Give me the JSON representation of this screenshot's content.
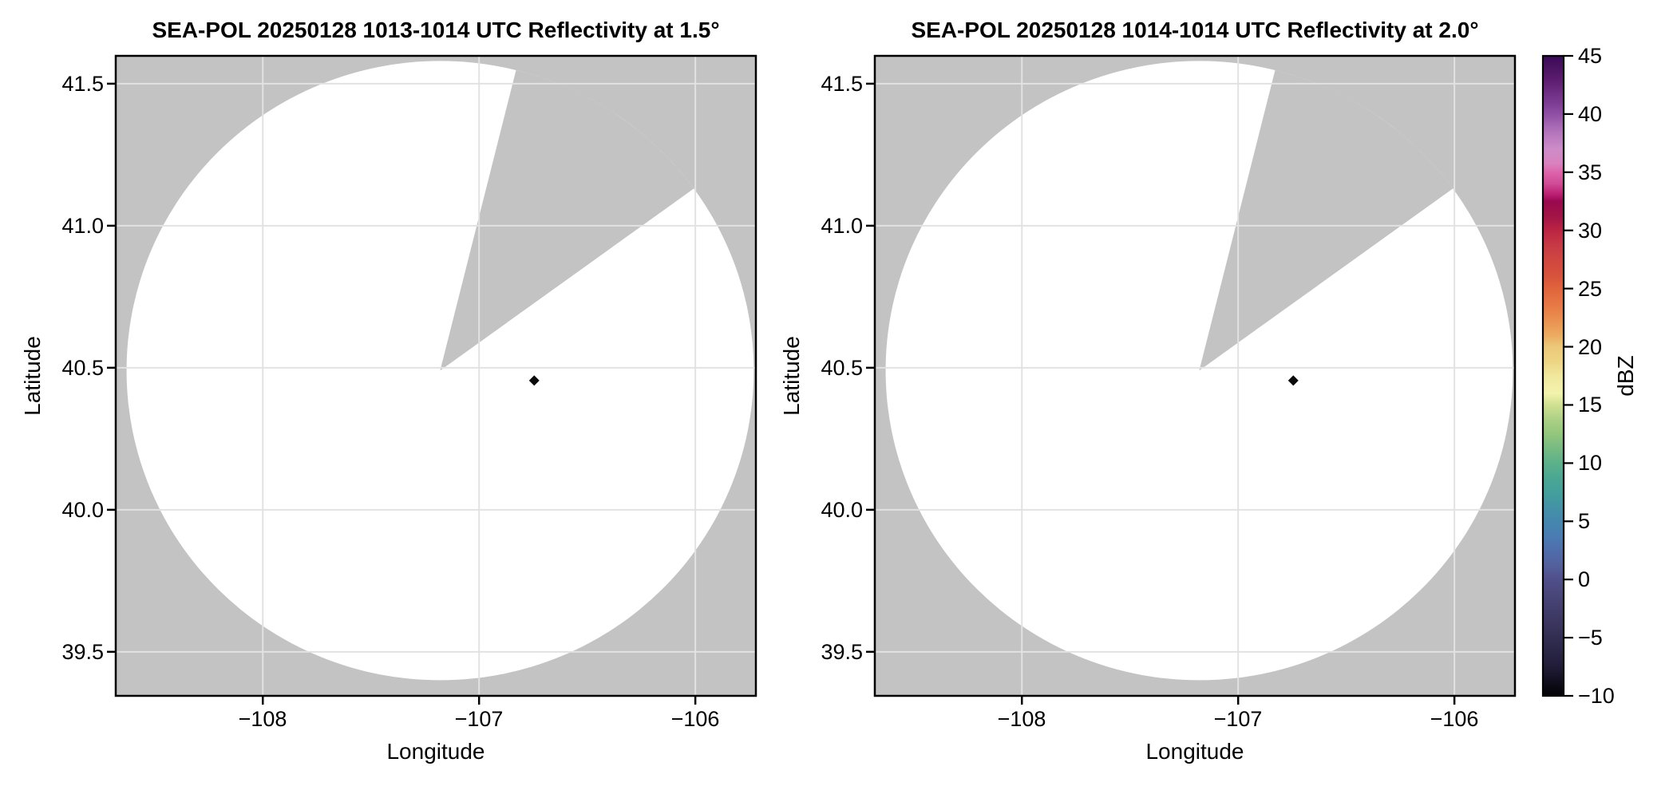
{
  "figure": {
    "background": "#ffffff",
    "panel_bg_nodata": "#c3c3c3",
    "scan_area_color": "#ffffff",
    "grid_color": "#e2e2e2",
    "frame_color": "#000000"
  },
  "chart_data": [
    {
      "type": "radar_ppi",
      "title": "SEA-POL 20250128 1013-1014 UTC Reflectivity at 1.5°",
      "xlabel": "Longitude",
      "ylabel": "Latitude",
      "xlim": [
        -108.68,
        -105.72
      ],
      "ylim": [
        39.345,
        41.598
      ],
      "x_ticks": [
        -108,
        -107,
        -106
      ],
      "x_tick_labels": [
        "−108",
        "−107",
        "−106"
      ],
      "y_ticks": [
        41.5,
        41.0,
        40.5,
        40.0,
        39.5
      ],
      "y_tick_labels": [
        "41.5",
        "41.0",
        "40.5",
        "40.0",
        "39.5"
      ],
      "grid": true,
      "radar_site": {
        "lon": -107.18,
        "lat": 40.49
      },
      "range_radius_deg": {
        "lon": 1.45,
        "lat": 1.09
      },
      "no_data_sector_azimuth_deg": [
        14,
        54
      ],
      "echoes": [
        {
          "lon": -106.745,
          "lat": 40.455,
          "dbz_approx": -10,
          "color": "#0a0a0a"
        }
      ]
    },
    {
      "type": "radar_ppi",
      "title": "SEA-POL 20250128 1014-1014 UTC Reflectivity at 2.0°",
      "xlabel": "Longitude",
      "ylabel": "Latitude",
      "xlim": [
        -108.68,
        -105.72
      ],
      "ylim": [
        39.345,
        41.598
      ],
      "x_ticks": [
        -108,
        -107,
        -106
      ],
      "x_tick_labels": [
        "−108",
        "−107",
        "−106"
      ],
      "y_ticks": [
        41.5,
        41.0,
        40.5,
        40.0,
        39.5
      ],
      "y_tick_labels": [
        "41.5",
        "41.0",
        "40.5",
        "40.0",
        "39.5"
      ],
      "grid": true,
      "radar_site": {
        "lon": -107.18,
        "lat": 40.49
      },
      "range_radius_deg": {
        "lon": 1.45,
        "lat": 1.09
      },
      "no_data_sector_azimuth_deg": [
        14,
        54
      ],
      "echoes": [
        {
          "lon": -106.745,
          "lat": 40.455,
          "dbz_approx": -10,
          "color": "#0a0a0a"
        }
      ]
    },
    {
      "type": "colorbar",
      "label": "dBZ",
      "vmin": -10,
      "vmax": 45,
      "ticks": [
        45,
        40,
        35,
        30,
        25,
        20,
        15,
        10,
        5,
        0,
        -5,
        -10
      ],
      "tick_labels": [
        "45",
        "40",
        "35",
        "30",
        "25",
        "20",
        "15",
        "10",
        "5",
        "0",
        "−5",
        "−10"
      ],
      "gradient": [
        {
          "v": 45,
          "c": "#3a0a56"
        },
        {
          "v": 43,
          "c": "#5b1c6e"
        },
        {
          "v": 41,
          "c": "#7c3b92"
        },
        {
          "v": 40,
          "c": "#8e4fa4"
        },
        {
          "v": 38.5,
          "c": "#b273bb"
        },
        {
          "v": 37,
          "c": "#cd8cc8"
        },
        {
          "v": 35.8,
          "c": "#d883c0"
        },
        {
          "v": 35,
          "c": "#de64aa"
        },
        {
          "v": 34,
          "c": "#d04a96"
        },
        {
          "v": 33,
          "c": "#b81a6e"
        },
        {
          "v": 32.5,
          "c": "#99094f"
        },
        {
          "v": 31.2,
          "c": "#a21446"
        },
        {
          "v": 30,
          "c": "#bc2444"
        },
        {
          "v": 28.7,
          "c": "#c73a45"
        },
        {
          "v": 27.5,
          "c": "#cf4640"
        },
        {
          "v": 26,
          "c": "#d8533c"
        },
        {
          "v": 25,
          "c": "#e0643c"
        },
        {
          "v": 23.5,
          "c": "#e87a46"
        },
        {
          "v": 22.5,
          "c": "#ea8c4e"
        },
        {
          "v": 21,
          "c": "#ecab60"
        },
        {
          "v": 20,
          "c": "#edc87a"
        },
        {
          "v": 18.7,
          "c": "#eed584"
        },
        {
          "v": 17.5,
          "c": "#f0e89e"
        },
        {
          "v": 16,
          "c": "#f3f3ad"
        },
        {
          "v": 15,
          "c": "#cfe092"
        },
        {
          "v": 13.7,
          "c": "#abd085"
        },
        {
          "v": 12.5,
          "c": "#93c67c"
        },
        {
          "v": 11,
          "c": "#72b884"
        },
        {
          "v": 10,
          "c": "#5cb18a"
        },
        {
          "v": 8.7,
          "c": "#4ba793"
        },
        {
          "v": 7.5,
          "c": "#43a09b"
        },
        {
          "v": 6.2,
          "c": "#4492a6"
        },
        {
          "v": 5,
          "c": "#4487ae"
        },
        {
          "v": 3.7,
          "c": "#4a7cb3"
        },
        {
          "v": 2.5,
          "c": "#4f6dab"
        },
        {
          "v": 1.2,
          "c": "#53609d"
        },
        {
          "v": 0,
          "c": "#504f8a"
        },
        {
          "v": -2.5,
          "c": "#423e6c"
        },
        {
          "v": -5,
          "c": "#322e52"
        },
        {
          "v": -7.5,
          "c": "#201c38"
        },
        {
          "v": -10,
          "c": "#020204"
        }
      ]
    }
  ]
}
